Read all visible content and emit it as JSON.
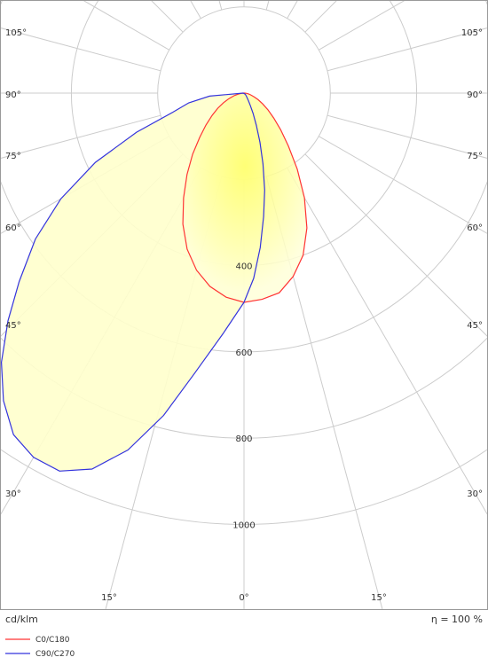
{
  "chart_data": {
    "type": "polar-luminous-intensity",
    "unit_label": "cd/klm",
    "efficiency_label": "η = 100 %",
    "radial_ticks": [
      200,
      400,
      600,
      800,
      1000
    ],
    "radial_tick_labels": [
      "400",
      "600",
      "800",
      "1000"
    ],
    "angle_labels": [
      {
        "angle": 105,
        "text": "105°"
      },
      {
        "angle": 90,
        "text": "90°"
      },
      {
        "angle": 75,
        "text": "75°"
      },
      {
        "angle": 60,
        "text": "60°"
      },
      {
        "angle": 45,
        "text": "45°"
      },
      {
        "angle": 30,
        "text": "30°"
      },
      {
        "angle": 15,
        "text": "15°"
      },
      {
        "angle": 0,
        "text": "0°"
      }
    ],
    "grid": true,
    "legend_placement": "bottom-left",
    "series": [
      {
        "name": "C0/C180",
        "color": "#ff3333",
        "points": [
          [
            0,
            485
          ],
          [
            5,
            480
          ],
          [
            10,
            470
          ],
          [
            15,
            440
          ],
          [
            20,
            400
          ],
          [
            25,
            345
          ],
          [
            30,
            280
          ],
          [
            35,
            215
          ],
          [
            40,
            160
          ],
          [
            45,
            120
          ],
          [
            50,
            90
          ],
          [
            55,
            68
          ],
          [
            60,
            50
          ],
          [
            65,
            36
          ],
          [
            70,
            25
          ],
          [
            75,
            16
          ],
          [
            80,
            10
          ],
          [
            85,
            5
          ],
          [
            90,
            1
          ],
          [
            -5,
            475
          ],
          [
            -10,
            455
          ],
          [
            -15,
            425
          ],
          [
            -20,
            385
          ],
          [
            -25,
            335
          ],
          [
            -30,
            280
          ],
          [
            -35,
            230
          ],
          [
            -40,
            185
          ],
          [
            -45,
            145
          ],
          [
            -50,
            115
          ],
          [
            -55,
            90
          ],
          [
            -60,
            70
          ],
          [
            -65,
            52
          ],
          [
            -70,
            37
          ],
          [
            -75,
            24
          ],
          [
            -80,
            13
          ],
          [
            -85,
            5
          ],
          [
            -90,
            1
          ]
        ]
      },
      {
        "name": "C90/C270",
        "color": "#3333dd",
        "points": [
          [
            0,
            485
          ],
          [
            3,
            430
          ],
          [
            6,
            360
          ],
          [
            9,
            290
          ],
          [
            12,
            230
          ],
          [
            15,
            170
          ],
          [
            18,
            120
          ],
          [
            21,
            80
          ],
          [
            24,
            52
          ],
          [
            27,
            32
          ],
          [
            30,
            20
          ],
          [
            35,
            11
          ],
          [
            40,
            7
          ],
          [
            45,
            5
          ],
          [
            50,
            4
          ],
          [
            -5,
            560
          ],
          [
            -10,
            660
          ],
          [
            -14,
            770
          ],
          [
            -18,
            870
          ],
          [
            -22,
            940
          ],
          [
            -26,
            975
          ],
          [
            -30,
            975
          ],
          [
            -34,
            955
          ],
          [
            -38,
            905
          ],
          [
            -42,
            840
          ],
          [
            -46,
            760
          ],
          [
            -50,
            680
          ],
          [
            -55,
            590
          ],
          [
            -60,
            490
          ],
          [
            -65,
            380
          ],
          [
            -70,
            265
          ],
          [
            -75,
            170
          ],
          [
            -80,
            130
          ],
          [
            -85,
            80
          ],
          [
            -90,
            2
          ]
        ]
      }
    ],
    "fill_color": "#ffffcc"
  }
}
